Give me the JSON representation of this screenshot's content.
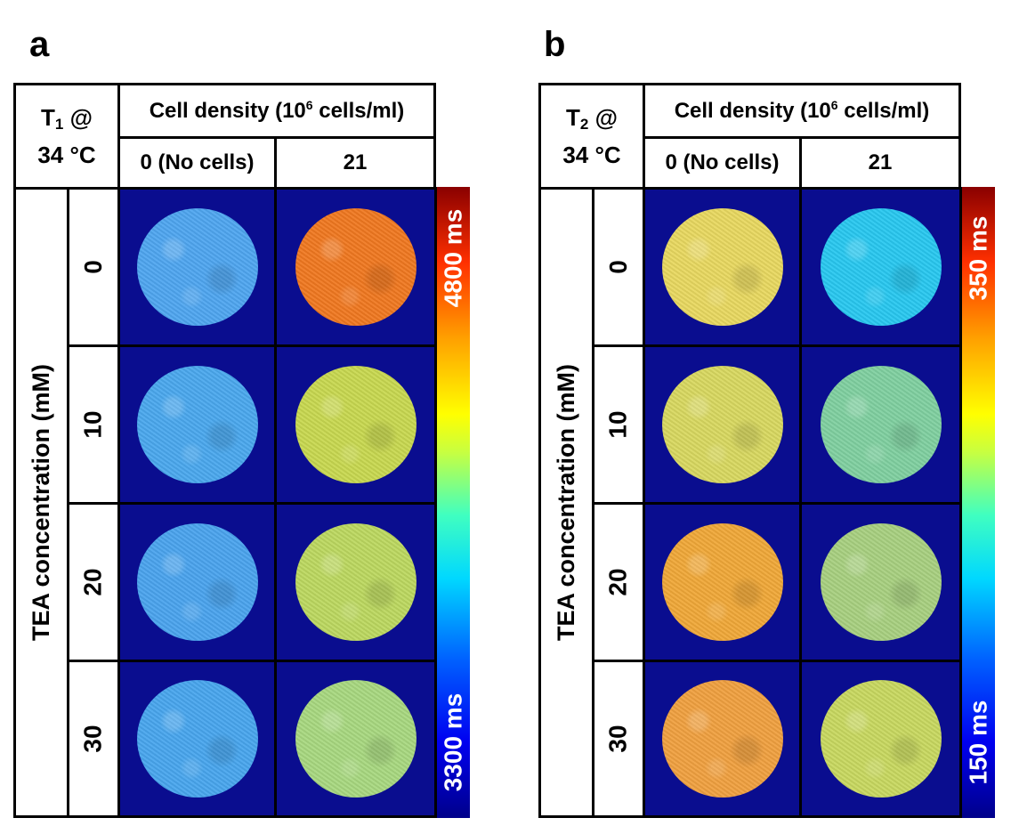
{
  "panels": [
    {
      "label": "a",
      "param": "T",
      "param_sub": "1",
      "temp_prefix": "@",
      "temp": "34 °C",
      "density_header": "Cell density (10",
      "density_exp": "6",
      "density_unit": " cells/ml)",
      "col_no_cells": "0 (No cells)",
      "col_21": "21",
      "axis_label": "TEA concentration (mM)",
      "rows": [
        "0",
        "10",
        "20",
        "30"
      ],
      "scale_max": "4800 ms",
      "scale_min": "3300 ms"
    },
    {
      "label": "b",
      "param": "T",
      "param_sub": "2",
      "temp_prefix": "@",
      "temp": "34 °C",
      "density_header": "Cell density (10",
      "density_exp": "6",
      "density_unit": " cells/ml)",
      "col_no_cells": "0 (No cells)",
      "col_21": "21",
      "axis_label": "TEA concentration (mM)",
      "rows": [
        "0",
        "10",
        "20",
        "30"
      ],
      "scale_max": "350 ms",
      "scale_min": "150 ms"
    }
  ],
  "disc_colors": {
    "a": [
      [
        "#4fa6f0",
        "#f07820"
      ],
      [
        "#4aa8ee",
        "#c8d850"
      ],
      [
        "#4aa4ee",
        "#bcd860"
      ],
      [
        "#48a6ee",
        "#a8d880"
      ]
    ],
    "b": [
      [
        "#e8d860",
        "#28c8f0"
      ],
      [
        "#d8d860",
        "#80d0a0"
      ],
      [
        "#f0a838",
        "#a8d080"
      ],
      [
        "#f0a040",
        "#c8d860"
      ]
    ]
  }
}
